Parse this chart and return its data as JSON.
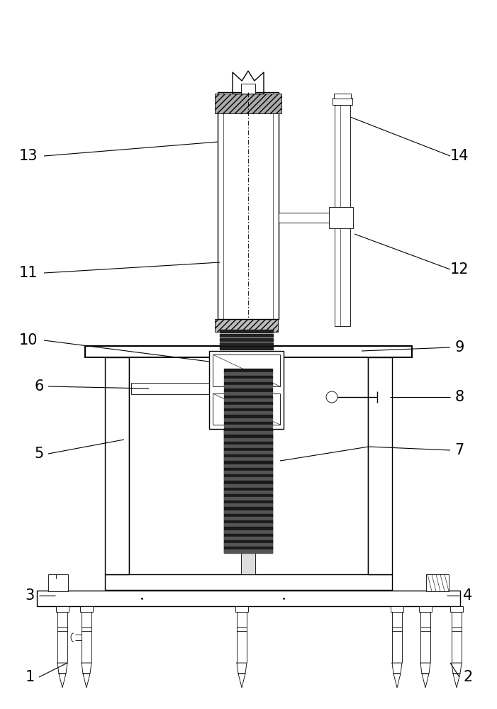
{
  "bg_color": "#ffffff",
  "line_color": "#000000",
  "fig_width": 7.01,
  "fig_height": 10.0,
  "font_size": 15,
  "lw_thin": 0.6,
  "lw_med": 1.0,
  "lw_thick": 1.5
}
